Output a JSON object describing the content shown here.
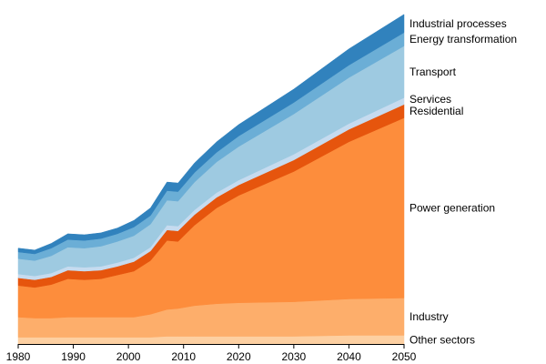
{
  "chart_data": {
    "type": "area",
    "stacked": true,
    "title": "",
    "xlabel": "",
    "ylabel": "",
    "xlim": [
      1980,
      2050
    ],
    "ylim": [
      0,
      17
    ],
    "grid": false,
    "legend": "labels at right end of each band",
    "x_ticks": [
      "1980",
      "1990",
      "2000",
      "2010",
      "2020",
      "2030",
      "2040",
      "2050"
    ],
    "x": [
      1980,
      1983,
      1986,
      1989,
      1992,
      1995,
      1998,
      2001,
      2004,
      2007,
      2009,
      2012,
      2016,
      2020,
      2030,
      2040,
      2050
    ],
    "series": [
      {
        "name": "Other sectors",
        "color": "#fdd0a2",
        "values": [
          0.35,
          0.35,
          0.35,
          0.35,
          0.35,
          0.35,
          0.35,
          0.35,
          0.35,
          0.4,
          0.4,
          0.4,
          0.4,
          0.4,
          0.4,
          0.45,
          0.45
        ]
      },
      {
        "name": "Industry",
        "color": "#fdae6b",
        "values": [
          1.05,
          1.0,
          1.0,
          1.05,
          1.05,
          1.05,
          1.05,
          1.05,
          1.2,
          1.4,
          1.45,
          1.6,
          1.7,
          1.75,
          1.8,
          1.9,
          1.95
        ]
      },
      {
        "name": "Power generation",
        "color": "#fd8d3c",
        "values": [
          1.65,
          1.6,
          1.75,
          2.0,
          1.95,
          2.0,
          2.2,
          2.4,
          2.8,
          3.6,
          3.5,
          4.2,
          5.0,
          5.6,
          6.8,
          8.2,
          9.4
        ]
      },
      {
        "name": "Residential",
        "color": "#e6550d",
        "values": [
          0.4,
          0.4,
          0.4,
          0.45,
          0.45,
          0.45,
          0.45,
          0.5,
          0.5,
          0.55,
          0.55,
          0.55,
          0.55,
          0.55,
          0.6,
          0.65,
          0.7
        ]
      },
      {
        "name": "Services",
        "color": "#c6dbef",
        "values": [
          0.2,
          0.2,
          0.2,
          0.2,
          0.2,
          0.2,
          0.2,
          0.2,
          0.2,
          0.25,
          0.25,
          0.25,
          0.25,
          0.25,
          0.3,
          0.3,
          0.35
        ]
      },
      {
        "name": "Transport",
        "color": "#9ecae1",
        "values": [
          0.8,
          0.8,
          0.9,
          1.0,
          1.0,
          1.05,
          1.1,
          1.15,
          1.2,
          1.3,
          1.3,
          1.45,
          1.6,
          1.75,
          2.1,
          2.4,
          2.7
        ]
      },
      {
        "name": "Energy transformation",
        "color": "#6baed6",
        "values": [
          0.35,
          0.35,
          0.4,
          0.4,
          0.4,
          0.4,
          0.4,
          0.45,
          0.45,
          0.5,
          0.5,
          0.5,
          0.5,
          0.55,
          0.6,
          0.65,
          0.7
        ]
      },
      {
        "name": "Industrial processes",
        "color": "#3182bd",
        "values": [
          0.2,
          0.2,
          0.25,
          0.3,
          0.3,
          0.3,
          0.3,
          0.35,
          0.4,
          0.45,
          0.45,
          0.5,
          0.55,
          0.6,
          0.7,
          0.85,
          0.95
        ]
      }
    ]
  }
}
